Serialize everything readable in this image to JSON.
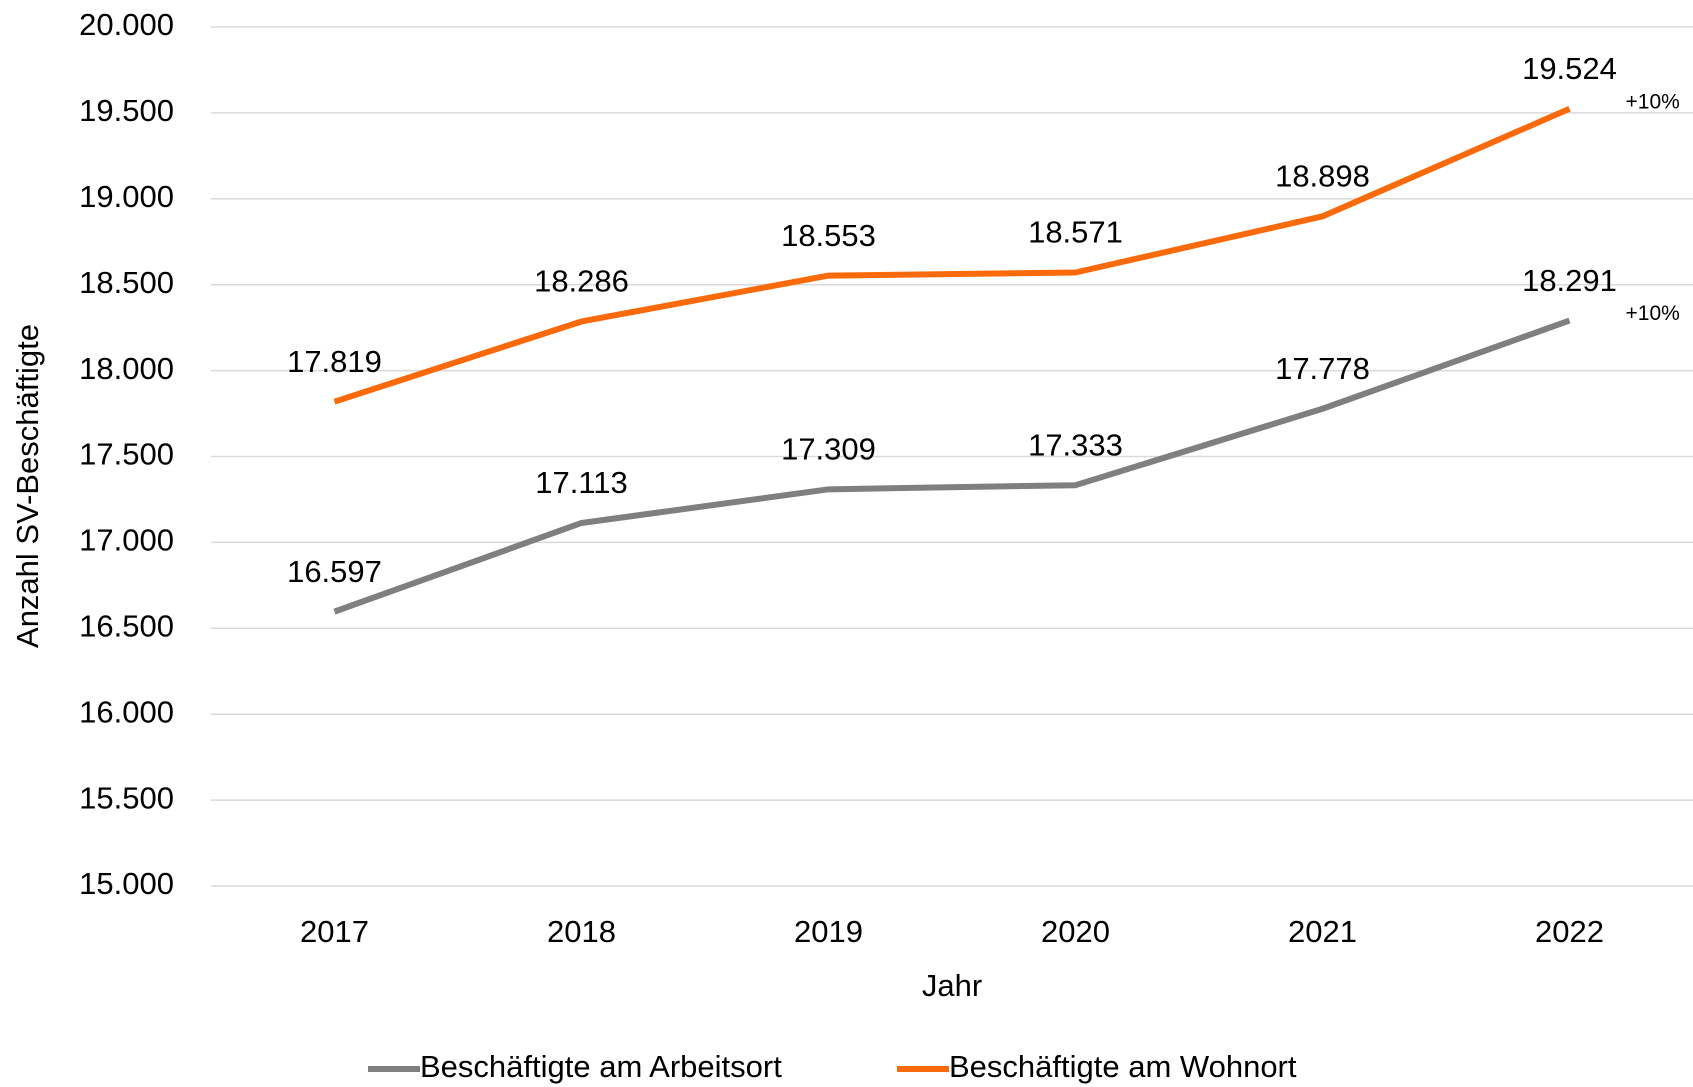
{
  "chart_data": {
    "type": "line",
    "x_label": "Jahr",
    "y_label": "Anzahl SV-Beschäftigte",
    "categories": [
      "2017",
      "2018",
      "2019",
      "2020",
      "2021",
      "2022"
    ],
    "series": [
      {
        "name": "Beschäftigte am Arbeitsort",
        "color": "#7f7f7f",
        "values": [
          16597,
          17113,
          17309,
          17333,
          17778,
          18291
        ],
        "value_labels": [
          "16.597",
          "17.113",
          "17.309",
          "17.333",
          "17.778",
          "18.291"
        ],
        "change_label": "+10%"
      },
      {
        "name": "Beschäftigte am Wohnort",
        "color": "#fa6a0a",
        "values": [
          17819,
          18286,
          18553,
          18571,
          18898,
          19524
        ],
        "value_labels": [
          "17.819",
          "18.286",
          "18.553",
          "18.571",
          "18.898",
          "19.524"
        ],
        "change_label": "+10%"
      }
    ],
    "ylim": [
      15000,
      20000
    ],
    "yticks": [
      {
        "value": 15000,
        "label": "15.000"
      },
      {
        "value": 15500,
        "label": "15.500"
      },
      {
        "value": 16000,
        "label": "16.000"
      },
      {
        "value": 16500,
        "label": "16.500"
      },
      {
        "value": 17000,
        "label": "17.000"
      },
      {
        "value": 17500,
        "label": "17.500"
      },
      {
        "value": 18000,
        "label": "18.000"
      },
      {
        "value": 18500,
        "label": "18.500"
      },
      {
        "value": 19000,
        "label": "19.000"
      },
      {
        "value": 19500,
        "label": "19.500"
      },
      {
        "value": 20000,
        "label": "20.000"
      }
    ],
    "grid": true,
    "legend": "bottom"
  }
}
